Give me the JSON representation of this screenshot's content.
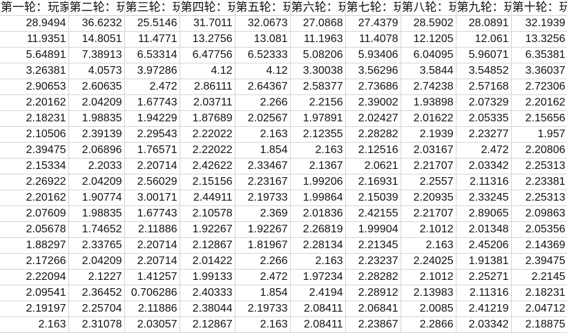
{
  "sheet": {
    "headers": [
      "第一轮：玩家",
      "第二轮：玩家",
      "第三轮：玩家",
      "第四轮：玩家",
      "第五轮：玩家",
      "第六轮：玩家",
      "第七轮：玩家",
      "第八轮：玩家",
      "第九轮：玩家",
      "第十轮：玩家"
    ],
    "rows": [
      [
        "28.9494",
        "36.6232",
        "25.5146",
        "31.7011",
        "32.0673",
        "27.0868",
        "27.4379",
        "28.5902",
        "28.0891",
        "32.1939"
      ],
      [
        "11.9351",
        "14.8051",
        "11.4771",
        "13.2756",
        "13.081",
        "11.1963",
        "11.4078",
        "12.1205",
        "12.061",
        "13.3256"
      ],
      [
        "5.64891",
        "7.38913",
        "6.53314",
        "6.47756",
        "6.52333",
        "5.08206",
        "5.93406",
        "6.04095",
        "5.96071",
        "6.35381"
      ],
      [
        "3.26381",
        "4.0573",
        "3.97286",
        "4.12",
        "4.12",
        "3.30038",
        "3.56296",
        "3.5844",
        "3.54852",
        "3.36037"
      ],
      [
        "2.90653",
        "2.60635",
        "2.472",
        "2.86111",
        "2.64367",
        "2.58377",
        "2.73686",
        "2.74238",
        "2.57168",
        "2.72306"
      ],
      [
        "2.20162",
        "2.04209",
        "1.67743",
        "2.03711",
        "2.266",
        "2.2156",
        "2.39002",
        "1.93898",
        "2.07329",
        "2.20162"
      ],
      [
        "2.18231",
        "1.98835",
        "1.94229",
        "1.87689",
        "2.02567",
        "1.97891",
        "2.02427",
        "2.01622",
        "2.05335",
        "2.15656"
      ],
      [
        "2.10506",
        "2.39139",
        "2.29543",
        "2.22022",
        "2.163",
        "2.12355",
        "2.28282",
        "2.1939",
        "2.23277",
        "1.957"
      ],
      [
        "2.39475",
        "2.06896",
        "1.76571",
        "2.22022",
        "1.854",
        "2.163",
        "2.12516",
        "2.03167",
        "2.472",
        "2.20806"
      ],
      [
        "2.15334",
        "2.2033",
        "2.20714",
        "2.42622",
        "2.33467",
        "2.1367",
        "2.0621",
        "2.21707",
        "2.03342",
        "2.25313"
      ],
      [
        "2.26922",
        "2.04209",
        "2.56029",
        "2.15156",
        "2.23167",
        "1.99206",
        "2.16931",
        "2.2557",
        "2.11316",
        "2.23381"
      ],
      [
        "2.20162",
        "1.90774",
        "3.00171",
        "2.44911",
        "2.19733",
        "1.99864",
        "2.15039",
        "2.20935",
        "2.33245",
        "2.25313"
      ],
      [
        "2.07609",
        "1.98835",
        "1.67743",
        "2.10578",
        "2.369",
        "2.01836",
        "2.42155",
        "2.21707",
        "2.89065",
        "2.09863"
      ],
      [
        "2.05678",
        "1.74652",
        "2.11886",
        "1.92267",
        "1.92267",
        "2.26819",
        "1.99904",
        "2.1012",
        "2.01348",
        "2.05356"
      ],
      [
        "1.88297",
        "2.33765",
        "2.20714",
        "2.12867",
        "1.81967",
        "2.28134",
        "2.21345",
        "2.163",
        "2.45206",
        "2.14369"
      ],
      [
        "2.17266",
        "2.04209",
        "2.20714",
        "2.01422",
        "2.266",
        "2.163",
        "2.23237",
        "2.24025",
        "1.91381",
        "2.39475"
      ],
      [
        "2.22094",
        "2.1227",
        "1.41257",
        "1.99133",
        "2.472",
        "1.97234",
        "2.28282",
        "2.1012",
        "2.25271",
        "2.2145"
      ],
      [
        "2.09541",
        "2.36452",
        "0.706286",
        "2.40333",
        "1.854",
        "2.4194",
        "2.28912",
        "2.13983",
        "2.11316",
        "2.18231"
      ],
      [
        "2.19197",
        "2.25704",
        "2.11886",
        "2.38044",
        "2.19733",
        "2.08411",
        "2.06841",
        "2.0085",
        "2.41219",
        "2.04712"
      ],
      [
        "2.163",
        "2.31078",
        "2.03057",
        "2.12867",
        "2.163",
        "2.08411",
        "2.23867",
        "2.2866",
        "2.03342",
        "2.18875"
      ]
    ]
  }
}
